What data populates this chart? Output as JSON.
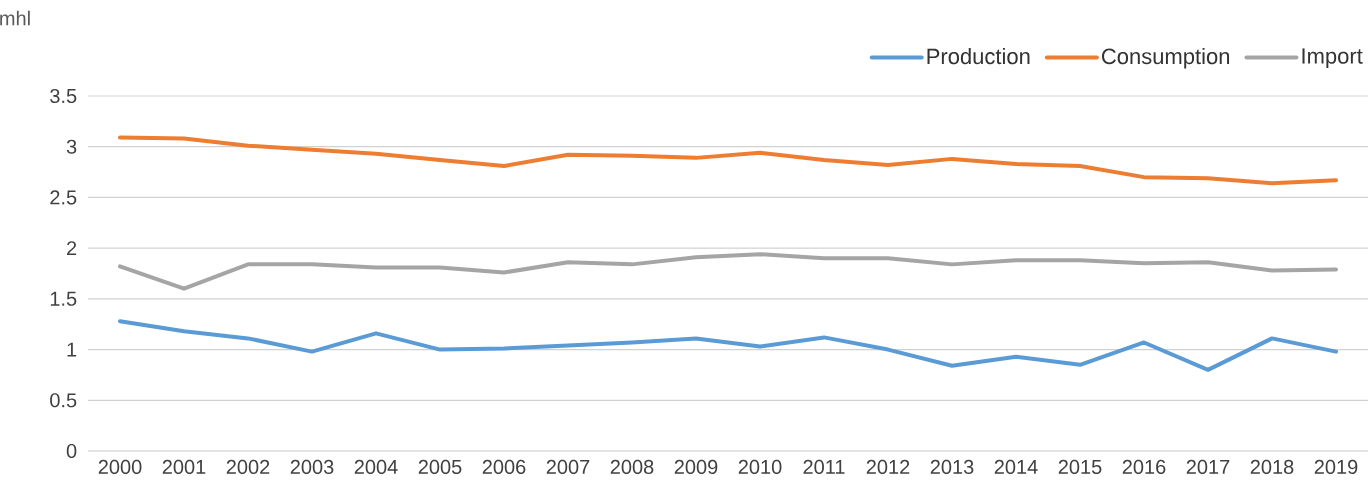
{
  "chart_data": {
    "type": "line",
    "ylabel": "mhl",
    "categories": [
      "2000",
      "2001",
      "2002",
      "2003",
      "2004",
      "2005",
      "2006",
      "2007",
      "2008",
      "2009",
      "2010",
      "2011",
      "2012",
      "2013",
      "2014",
      "2015",
      "2016",
      "2017",
      "2018",
      "2019"
    ],
    "series": [
      {
        "name": "Production",
        "color": "#5b9bd5",
        "values": [
          1.28,
          1.18,
          1.11,
          0.98,
          1.16,
          1.0,
          1.01,
          1.04,
          1.07,
          1.11,
          1.03,
          1.12,
          1.0,
          0.84,
          0.93,
          0.85,
          1.07,
          0.8,
          1.11,
          0.98
        ]
      },
      {
        "name": "Consumption",
        "color": "#ed7d31",
        "values": [
          3.09,
          3.08,
          3.01,
          2.97,
          2.93,
          2.87,
          2.81,
          2.92,
          2.91,
          2.89,
          2.94,
          2.87,
          2.82,
          2.88,
          2.83,
          2.81,
          2.7,
          2.69,
          2.64,
          2.67
        ]
      },
      {
        "name": "Import",
        "color": "#a5a5a5",
        "values": [
          1.82,
          1.6,
          1.84,
          1.84,
          1.81,
          1.81,
          1.76,
          1.86,
          1.84,
          1.91,
          1.94,
          1.9,
          1.9,
          1.84,
          1.88,
          1.88,
          1.85,
          1.86,
          1.78,
          1.79
        ]
      }
    ],
    "ylim": [
      0,
      3.5
    ],
    "yticks": [
      0,
      0.5,
      1,
      1.5,
      2,
      2.5,
      3,
      3.5
    ],
    "grid": "y",
    "legend": "top right"
  }
}
